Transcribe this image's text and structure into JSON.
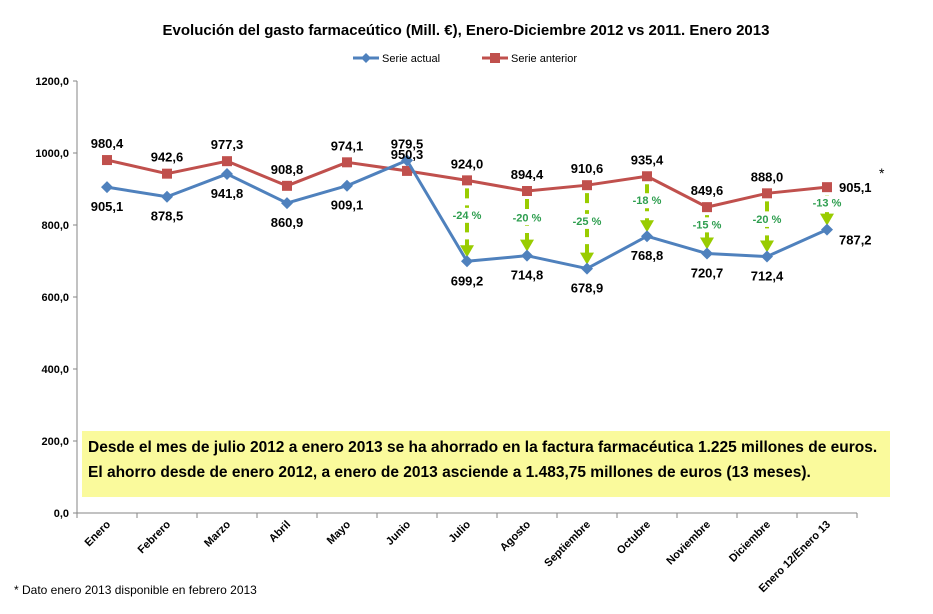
{
  "chart_data": {
    "type": "line",
    "title": "Evolución del gasto farmaceútico (Mill. €), Enero-Diciembre 2012 vs 2011. Enero 2013",
    "categories": [
      "Enero",
      "Febrero",
      "Marzo",
      "Abril",
      "Mayo",
      "Junio",
      "Julio",
      "Agosto",
      "Septiembre",
      "Octubre",
      "Noviembre",
      "Diciembre",
      "Enero 12/Enero 13"
    ],
    "ylim": [
      0,
      1200
    ],
    "yticks": [
      "0,0",
      "200,0",
      "400,0",
      "600,0",
      "800,0",
      "1000,0",
      "1200,0"
    ],
    "grid": false,
    "legend_position": "top",
    "series": [
      {
        "name": "Serie actual",
        "color": "#4f81bd",
        "marker": "diamond",
        "values": [
          905.1,
          878.5,
          941.8,
          860.9,
          909.1,
          979.5,
          699.2,
          714.8,
          678.9,
          768.8,
          720.7,
          712.4,
          787.2
        ],
        "labels": [
          "905,1",
          "878,5",
          "941,8",
          "860,9",
          "909,1",
          "979,5",
          "699,2",
          "714,8",
          "678,9",
          "768,8",
          "720,7",
          "712,4",
          "787,2"
        ]
      },
      {
        "name": "Serie anterior",
        "color": "#c0504d",
        "marker": "square",
        "values": [
          980.4,
          942.6,
          977.3,
          908.8,
          974.1,
          950.3,
          924.0,
          894.4,
          910.6,
          935.4,
          849.6,
          888.0,
          905.1
        ],
        "labels": [
          "980,4",
          "942,6",
          "977,3",
          "908,8",
          "974,1",
          "950,3",
          "924,0",
          "894,4",
          "910,6",
          "935,4",
          "849,6",
          "888,0",
          "905,1"
        ]
      }
    ],
    "annotations": {
      "percent_changes": [
        {
          "category": "Julio",
          "text": "-24 %"
        },
        {
          "category": "Agosto",
          "text": "-20 %"
        },
        {
          "category": "Septiembre",
          "text": "-25 %"
        },
        {
          "category": "Octubre",
          "text": "-18 %"
        },
        {
          "category": "Noviembre",
          "text": "-15 %"
        },
        {
          "category": "Diciembre",
          "text": "-20 %"
        },
        {
          "category": "Enero 12/Enero 13",
          "text": "-13 %"
        }
      ],
      "arrow_color": "#99cc00",
      "asterisk": "*"
    }
  },
  "note": {
    "line1": "Desde el mes de julio 2012 a enero 2013 se ha ahorrado en la factura farmacéutica 1.225 millones de euros.",
    "line2": "El ahorro desde de enero 2012, a enero de 2013 asciende a 1.483,75 millones de euros (13 meses).",
    "background": "#fafa9c"
  },
  "footnote": "* Dato enero 2013 disponible en febrero 2013"
}
